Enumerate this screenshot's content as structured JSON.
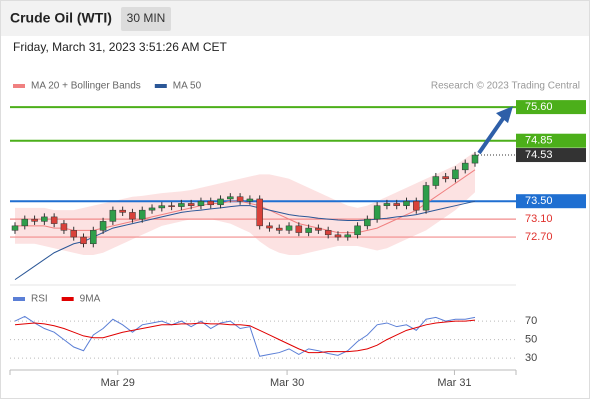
{
  "header": {
    "title": "Crude Oil (WTI)",
    "timeframe": "30 MIN"
  },
  "chart_data": [
    {
      "type": "candlestick",
      "timestamp": "Friday, March 31, 2023 3:51:26 AM CET",
      "credit": "Research © 2023 Trading Central",
      "legend": [
        {
          "name": "MA 20 + Bollinger Bands",
          "color": "#f08080"
        },
        {
          "name": "MA 50",
          "color": "#2b5797"
        }
      ],
      "ylim": [
        71.63,
        75.87
      ],
      "x_labels": [
        "Mar 29",
        "Mar 30",
        "Mar 31"
      ],
      "up_color": "#2e9e4a",
      "down_color": "#d9413a",
      "open": [
        72.85,
        72.95,
        73.1,
        73.05,
        73.15,
        73.0,
        72.85,
        72.7,
        72.55,
        72.85,
        73.05,
        73.3,
        73.25,
        73.1,
        73.3,
        73.35,
        73.4,
        73.38,
        73.45,
        73.4,
        73.5,
        73.42,
        73.55,
        73.6,
        73.5,
        73.55,
        72.95,
        72.9,
        72.85,
        72.95,
        72.8,
        72.9,
        72.85,
        72.75,
        72.7,
        72.75,
        72.95,
        73.1,
        73.4,
        73.45,
        73.4,
        73.5,
        73.3,
        73.85,
        74.05,
        74.0,
        74.2,
        74.35
      ],
      "high": [
        73.03,
        73.18,
        73.18,
        73.23,
        73.23,
        73.08,
        72.93,
        72.78,
        72.93,
        73.13,
        73.38,
        73.38,
        73.33,
        73.38,
        73.43,
        73.48,
        73.48,
        73.53,
        73.53,
        73.58,
        73.58,
        73.63,
        73.68,
        73.68,
        73.63,
        73.63,
        73.03,
        72.98,
        73.03,
        73.03,
        72.98,
        72.98,
        72.93,
        72.83,
        72.83,
        73.03,
        73.18,
        73.48,
        73.53,
        73.53,
        73.58,
        73.58,
        73.93,
        74.13,
        74.13,
        74.28,
        74.43,
        74.6
      ],
      "low": [
        72.77,
        72.87,
        72.97,
        72.97,
        72.92,
        72.77,
        72.62,
        72.47,
        72.47,
        72.77,
        72.97,
        73.17,
        73.02,
        73.02,
        73.22,
        73.27,
        73.3,
        73.3,
        73.32,
        73.32,
        73.34,
        73.34,
        73.47,
        73.42,
        73.42,
        72.87,
        72.82,
        72.77,
        72.77,
        72.72,
        72.72,
        72.77,
        72.67,
        72.62,
        72.62,
        72.67,
        72.87,
        73.02,
        73.32,
        73.32,
        73.32,
        73.22,
        73.22,
        73.77,
        73.92,
        73.92,
        74.12,
        74.27
      ],
      "close": [
        72.95,
        73.1,
        73.05,
        73.15,
        73.0,
        72.85,
        72.7,
        72.55,
        72.85,
        73.05,
        73.3,
        73.25,
        73.1,
        73.3,
        73.35,
        73.4,
        73.38,
        73.45,
        73.4,
        73.5,
        73.42,
        73.55,
        73.6,
        73.5,
        73.55,
        72.95,
        72.9,
        72.85,
        72.95,
        72.8,
        72.9,
        72.85,
        72.75,
        72.7,
        72.75,
        72.95,
        73.1,
        73.4,
        73.45,
        73.4,
        73.5,
        73.3,
        73.85,
        74.05,
        74.0,
        74.2,
        74.35,
        74.53
      ],
      "ma20": [
        72.95,
        72.95,
        72.95,
        72.95,
        72.9,
        72.9,
        72.85,
        72.85,
        72.85,
        72.9,
        72.95,
        73.0,
        73.05,
        73.1,
        73.15,
        73.2,
        73.25,
        73.3,
        73.35,
        73.4,
        73.45,
        73.45,
        73.5,
        73.5,
        73.45,
        73.4,
        73.3,
        73.2,
        73.1,
        73.0,
        72.95,
        72.9,
        72.85,
        72.8,
        72.8,
        72.8,
        72.85,
        72.9,
        73.0,
        73.1,
        73.2,
        73.3,
        73.45,
        73.6,
        73.75,
        73.9,
        74.05,
        74.2
      ],
      "bollinger_upper": [
        73.35,
        73.35,
        73.35,
        73.35,
        73.3,
        73.3,
        73.3,
        73.35,
        73.4,
        73.45,
        73.5,
        73.55,
        73.6,
        73.62,
        73.65,
        73.68,
        73.7,
        73.72,
        73.75,
        73.8,
        73.85,
        73.9,
        73.95,
        74.0,
        74.05,
        74.1,
        74.1,
        74.05,
        74.0,
        73.9,
        73.8,
        73.7,
        73.6,
        73.5,
        73.4,
        73.35,
        73.4,
        73.5,
        73.6,
        73.7,
        73.8,
        73.9,
        74.0,
        74.1,
        74.2,
        74.3,
        74.45,
        74.6
      ],
      "bollinger_lower": [
        72.55,
        72.55,
        72.55,
        72.5,
        72.45,
        72.4,
        72.35,
        72.3,
        72.3,
        72.35,
        72.45,
        72.55,
        72.65,
        72.75,
        72.85,
        72.95,
        73.0,
        73.05,
        73.1,
        73.1,
        73.1,
        73.05,
        73.0,
        72.9,
        72.8,
        72.6,
        72.45,
        72.35,
        72.3,
        72.3,
        72.35,
        72.4,
        72.45,
        72.5,
        72.5,
        72.5,
        72.45,
        72.4,
        72.45,
        72.55,
        72.65,
        72.75,
        72.85,
        73.0,
        73.15,
        73.3,
        73.5,
        73.7
      ],
      "ma50": [
        71.75,
        71.9,
        72.05,
        72.2,
        72.35,
        72.45,
        72.55,
        72.6,
        72.7,
        72.8,
        72.9,
        72.95,
        73.0,
        73.05,
        73.1,
        73.15,
        73.2,
        73.25,
        73.28,
        73.3,
        73.33,
        73.35,
        73.38,
        73.4,
        73.4,
        73.35,
        73.3,
        73.25,
        73.2,
        73.17,
        73.15,
        73.12,
        73.1,
        73.08,
        73.07,
        73.07,
        73.08,
        73.1,
        73.12,
        73.15,
        73.17,
        73.2,
        73.25,
        73.3,
        73.35,
        73.4,
        73.45,
        73.5
      ],
      "levels": [
        {
          "value": 75.6,
          "label": "75.60",
          "color": "#4caf1a",
          "style": "box"
        },
        {
          "value": 74.85,
          "label": "74.85",
          "color": "#4caf1a",
          "style": "box"
        },
        {
          "value": 73.5,
          "label": "73.50",
          "color": "#1f6fd1",
          "style": "box"
        },
        {
          "value": 73.1,
          "label": "73.10",
          "color": "#f28c8c",
          "style": "text"
        },
        {
          "value": 72.7,
          "label": "72.70",
          "color": "#f28c8c",
          "style": "text"
        }
      ],
      "last_price": {
        "value": 74.53,
        "label": "74.53"
      }
    },
    {
      "type": "line",
      "ylim": [
        15,
        82
      ],
      "yticks": [
        70,
        50,
        30
      ],
      "series": [
        {
          "name": "RSI",
          "color": "#5b7fd6",
          "values": [
            70,
            75,
            68,
            62,
            58,
            50,
            42,
            38,
            55,
            62,
            72,
            66,
            58,
            66,
            68,
            70,
            66,
            70,
            64,
            70,
            62,
            68,
            70,
            62,
            64,
            32,
            34,
            36,
            40,
            34,
            40,
            38,
            35,
            33,
            38,
            48,
            55,
            66,
            68,
            64,
            66,
            60,
            72,
            74,
            70,
            72,
            72,
            74
          ]
        },
        {
          "name": "9MA",
          "color": "#e00000",
          "values": [
            66,
            67,
            68,
            67,
            65,
            62,
            58,
            54,
            52,
            52,
            55,
            58,
            60,
            62,
            64,
            66,
            66,
            67,
            67,
            68,
            67,
            67,
            66,
            66,
            65,
            60,
            55,
            50,
            45,
            40,
            36,
            36,
            37,
            37,
            37,
            38,
            40,
            44,
            50,
            55,
            60,
            63,
            66,
            68,
            69,
            70,
            70,
            71
          ]
        }
      ]
    }
  ]
}
